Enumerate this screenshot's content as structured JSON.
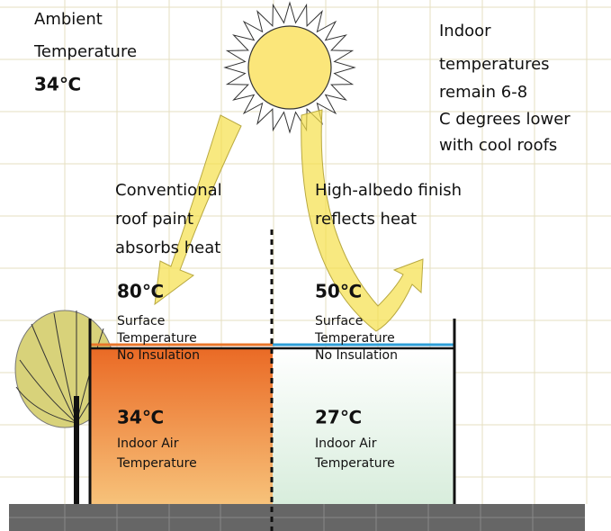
{
  "ambient": {
    "lines": [
      "Ambient",
      "Temperature"
    ],
    "temperature": "34℃"
  },
  "note": {
    "lines": [
      "Indoor",
      "temperatures",
      "remain 6-8",
      "C degrees lower",
      "with cool roofs"
    ]
  },
  "conventional": {
    "caption": [
      "Conventional",
      "roof paint",
      "absorbs heat"
    ],
    "surface_temperature": "80℃",
    "surface_label": [
      "Surface",
      "Temperature",
      "No Insulation"
    ],
    "indoor_temperature": "34℃",
    "indoor_label": [
      "Indoor Air",
      "Temperature"
    ]
  },
  "cool_roof": {
    "caption": [
      "High-albedo finish",
      "reflects heat"
    ],
    "surface_temperature": "50℃",
    "surface_label": [
      "Surface",
      "Temperature",
      "No Insulation"
    ],
    "indoor_temperature": "27℃",
    "indoor_label": [
      "Indoor Air",
      "Temperature"
    ]
  }
}
